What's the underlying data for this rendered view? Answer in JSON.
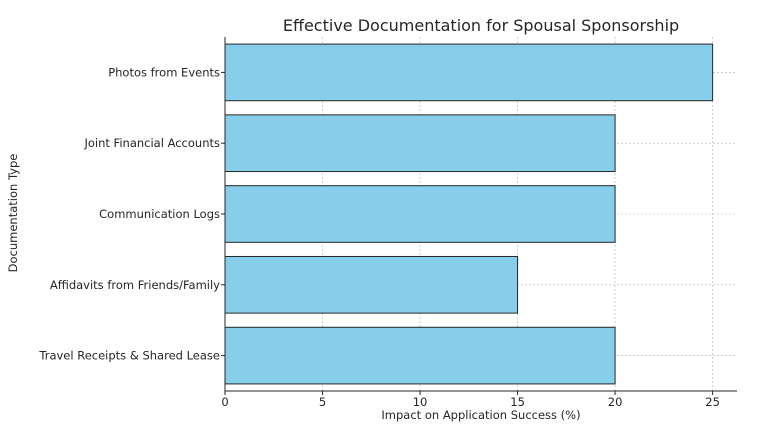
{
  "chart_data": {
    "type": "bar",
    "orientation": "horizontal",
    "title": "Effective Documentation for Spousal Sponsorship",
    "xlabel": "Impact on Application Success (%)",
    "ylabel": "Documentation Type",
    "categories": [
      "Travel Receipts & Shared Lease",
      "Affidavits from Friends/Family",
      "Communication Logs",
      "Joint Financial Accounts",
      "Photos from Events"
    ],
    "values": [
      20,
      15,
      20,
      20,
      25
    ],
    "xlim": [
      0,
      26.25
    ],
    "xticks": [
      0,
      5,
      10,
      15,
      20,
      25
    ],
    "grid": true,
    "bar_color": "#87ceeb",
    "edge_color": "#262626"
  }
}
